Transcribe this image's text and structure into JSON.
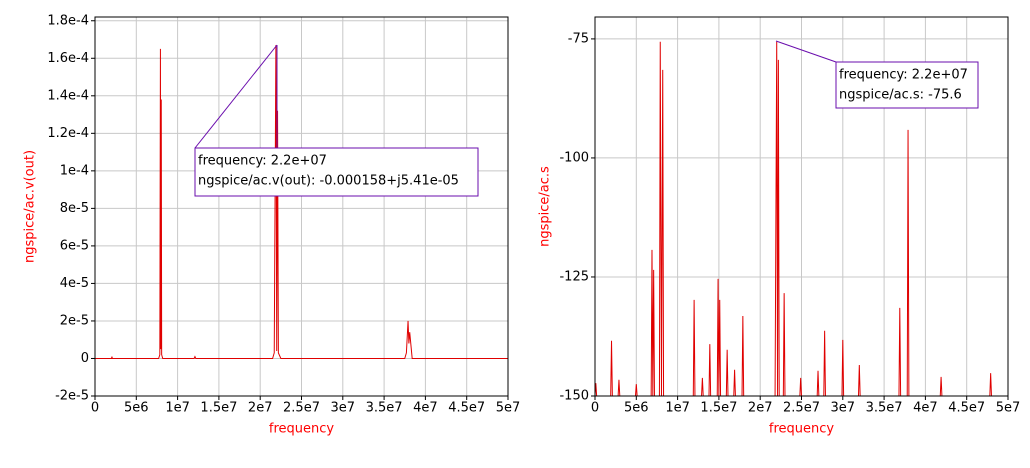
{
  "chart_data": [
    {
      "type": "line",
      "y_label": "ngspice/ac.v(out)",
      "x_label": "frequency",
      "color": "#e00000",
      "grid": true,
      "xlim": [
        0,
        50000000
      ],
      "xticks": [
        0,
        {
          "value": 5000000,
          "label": "5e6"
        },
        {
          "value": 10000000,
          "label": "1e7"
        },
        {
          "value": 15000000,
          "label": "1.5e7"
        },
        {
          "value": 20000000,
          "label": "2e7"
        },
        {
          "value": 25000000,
          "label": "2.5e7"
        },
        {
          "value": 30000000,
          "label": "3e7"
        },
        {
          "value": 35000000,
          "label": "3.5e7"
        },
        {
          "value": 40000000,
          "label": "4e7"
        },
        {
          "value": 45000000,
          "label": "4.5e7"
        },
        {
          "value": 50000000,
          "label": "5e7"
        }
      ],
      "ylim": [
        -2e-05,
        0.000182
      ],
      "yticks": [
        {
          "value": -2e-05,
          "label": "-2e-5"
        },
        0,
        {
          "value": 2e-05,
          "label": "2e-5"
        },
        {
          "value": 4e-05,
          "label": "4e-5"
        },
        {
          "value": 6e-05,
          "label": "6e-5"
        },
        {
          "value": 8e-05,
          "label": "8e-5"
        },
        {
          "value": 0.0001,
          "label": "1e-4"
        },
        {
          "value": 0.00012,
          "label": "1.2e-4"
        },
        {
          "value": 0.00014,
          "label": "1.4e-4"
        },
        {
          "value": 0.00016,
          "label": "1.6e-4"
        },
        {
          "value": 0.00018,
          "label": "1.8e-4"
        }
      ],
      "x": [
        0,
        2000000,
        2050000,
        2100000,
        7700000,
        7850000,
        7920000,
        7970000,
        8020000,
        8070000,
        8200000,
        12000000,
        12100000,
        12200000,
        21500000,
        21700000,
        21900000,
        22000000,
        22100000,
        22200000,
        22500000,
        37500000,
        37700000,
        37900000,
        38000000,
        38100000,
        38400000,
        50000000
      ],
      "values": [
        0,
        0,
        1e-06,
        0,
        0,
        2e-06,
        0.000165,
        5e-06,
        0.000138,
        2e-06,
        0,
        0,
        1e-06,
        0,
        0,
        3e-06,
        0.000167,
        4e-06,
        0.000132,
        3e-06,
        0,
        0,
        3e-06,
        2e-05,
        8e-06,
        1.4e-05,
        0,
        0
      ],
      "annotation": [
        "frequency: 2.2e+07",
        "ngspice/ac.v(out): -0.000158+j5.41e-05"
      ]
    },
    {
      "type": "line",
      "y_label": "ngspice/ac.s",
      "x_label": "frequency",
      "color": "#e00000",
      "grid": true,
      "xlim": [
        0,
        50000000
      ],
      "xticks": [
        0,
        {
          "value": 5000000,
          "label": "5e6"
        },
        {
          "value": 10000000,
          "label": "1e7"
        },
        {
          "value": 15000000,
          "label": "1.5e7"
        },
        {
          "value": 20000000,
          "label": "2e7"
        },
        {
          "value": 25000000,
          "label": "2.5e7"
        },
        {
          "value": 30000000,
          "label": "3e7"
        },
        {
          "value": 35000000,
          "label": "3.5e7"
        },
        {
          "value": 40000000,
          "label": "4e7"
        },
        {
          "value": 45000000,
          "label": "4.5e7"
        },
        {
          "value": 50000000,
          "label": "5e7"
        }
      ],
      "ylim": [
        -150,
        -70.4
      ],
      "yticks": [
        -150,
        -125,
        -100,
        -75
      ],
      "x": [
        0,
        100000,
        200000,
        1900000,
        2000000,
        2100000,
        2800000,
        2900000,
        3000000,
        4900000,
        5000000,
        5100000,
        6800000,
        6900000,
        7000000,
        7100000,
        7200000,
        7800000,
        7900000,
        8050000,
        8200000,
        8300000,
        11900000,
        12000000,
        12100000,
        12900000,
        13000000,
        13100000,
        13800000,
        13900000,
        14000000,
        14800000,
        14900000,
        15000000,
        15100000,
        15200000,
        15900000,
        16000000,
        16100000,
        16800000,
        16900000,
        17000000,
        17800000,
        17900000,
        18000000,
        21800000,
        22000000,
        22100000,
        22200000,
        22300000,
        22800000,
        22900000,
        23000000,
        24800000,
        24900000,
        25000000,
        26900000,
        27000000,
        27100000,
        27700000,
        27800000,
        27900000,
        29900000,
        30000000,
        30100000,
        31900000,
        32000000,
        32100000,
        36800000,
        36900000,
        37000000,
        37800000,
        37900000,
        38000000,
        41800000,
        41900000,
        42000000,
        47800000,
        47900000,
        48000000,
        50000000
      ],
      "values": [
        -150,
        -147.3,
        -150,
        -150,
        -138.4,
        -150,
        -150,
        -146.6,
        -150,
        -150,
        -147.5,
        -150,
        -150,
        -119.3,
        -150,
        -123.5,
        -150,
        -150,
        -75.6,
        -150,
        -81.5,
        -150,
        -150,
        -129.8,
        -150,
        -150,
        -146.2,
        -150,
        -150,
        -139.1,
        -150,
        -150,
        -125.4,
        -150,
        -129.8,
        -150,
        -150,
        -140.3,
        -150,
        -150,
        -144.5,
        -150,
        -150,
        -133.2,
        -150,
        -150,
        -75.6,
        -150,
        -79.4,
        -150,
        -150,
        -128.4,
        -150,
        -150,
        -146.2,
        -150,
        -150,
        -144.7,
        -150,
        -150,
        -136.3,
        -150,
        -150,
        -138.2,
        -150,
        -150,
        -143.5,
        -150,
        -150,
        -131.5,
        -150,
        -150,
        -94.1,
        -150,
        -150,
        -146,
        -150,
        -150,
        -145.2,
        -150,
        -150
      ],
      "annotation": [
        "frequency: 2.2e+07",
        "ngspice/ac.s: -75.6"
      ]
    }
  ]
}
